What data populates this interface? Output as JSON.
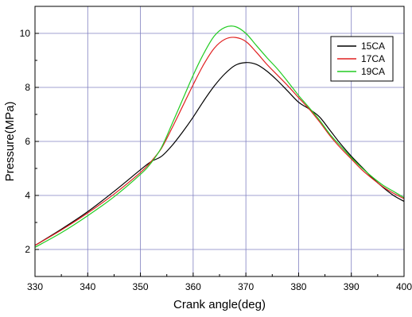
{
  "chart_data": {
    "type": "line",
    "title": "",
    "xlabel": "Crank angle(deg)",
    "ylabel": "Pressure(MPa)",
    "xlim": [
      330,
      400
    ],
    "ylim": [
      1,
      11
    ],
    "xticks": [
      330,
      340,
      350,
      360,
      370,
      380,
      390,
      400
    ],
    "yticks": [
      2,
      4,
      6,
      8,
      10
    ],
    "grid": true,
    "legend_position": "top-right",
    "series": [
      {
        "name": "15CA",
        "color": "#000000",
        "x": [
          330,
          335,
          340,
          345,
          350,
          352,
          354,
          356,
          358,
          360,
          362,
          364,
          366,
          368,
          370,
          372,
          374,
          376,
          378,
          380,
          382,
          384,
          386,
          388,
          390,
          392,
          394,
          396,
          398,
          400
        ],
        "y": [
          2.15,
          2.75,
          3.4,
          4.15,
          4.95,
          5.25,
          5.45,
          5.85,
          6.35,
          6.9,
          7.5,
          8.05,
          8.5,
          8.82,
          8.92,
          8.85,
          8.6,
          8.25,
          7.85,
          7.45,
          7.2,
          6.9,
          6.4,
          5.9,
          5.45,
          5.05,
          4.65,
          4.3,
          4.0,
          3.78
        ]
      },
      {
        "name": "17CA",
        "color": "#e02020",
        "x": [
          330,
          335,
          340,
          345,
          350,
          352,
          354,
          356,
          358,
          360,
          362,
          364,
          366,
          368,
          370,
          372,
          374,
          376,
          378,
          380,
          382,
          384,
          386,
          388,
          390,
          392,
          394,
          396,
          398,
          400
        ],
        "y": [
          2.15,
          2.72,
          3.35,
          4.05,
          4.85,
          5.25,
          5.75,
          6.5,
          7.3,
          8.1,
          8.85,
          9.45,
          9.78,
          9.85,
          9.7,
          9.3,
          8.85,
          8.45,
          8.05,
          7.62,
          7.2,
          6.72,
          6.2,
          5.75,
          5.35,
          4.95,
          4.62,
          4.32,
          4.08,
          3.88
        ]
      },
      {
        "name": "19CA",
        "color": "#22cc22",
        "x": [
          330,
          335,
          340,
          345,
          350,
          352,
          354,
          356,
          358,
          360,
          362,
          364,
          366,
          368,
          370,
          372,
          374,
          376,
          378,
          380,
          382,
          384,
          386,
          388,
          390,
          392,
          394,
          396,
          398,
          400
        ],
        "y": [
          2.08,
          2.62,
          3.25,
          3.95,
          4.78,
          5.2,
          5.78,
          6.65,
          7.55,
          8.45,
          9.25,
          9.9,
          10.22,
          10.25,
          10.0,
          9.55,
          9.1,
          8.68,
          8.2,
          7.7,
          7.25,
          6.78,
          6.25,
          5.82,
          5.4,
          5.02,
          4.68,
          4.38,
          4.15,
          3.92
        ]
      }
    ]
  }
}
